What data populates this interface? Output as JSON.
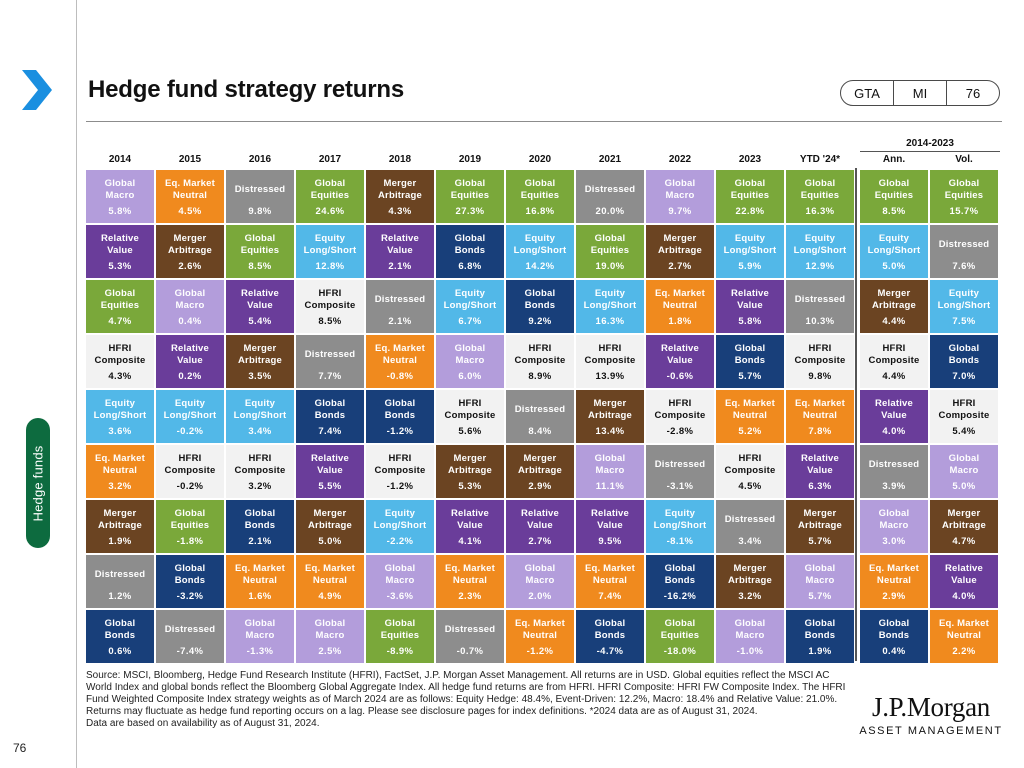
{
  "page": {
    "title": "Hedge fund strategy returns",
    "side_label": "Hedge funds",
    "page_number": "76",
    "badge": [
      "GTA",
      "MI",
      "76"
    ],
    "footnote": "Source: MSCI, Bloomberg, Hedge Fund Research Institute (HFRI), FactSet, J.P. Morgan Asset Management. All returns are in USD. Global equities reflect the MSCI AC World Index and global bonds reflect the Bloomberg Global Aggregate Index. All hedge fund returns are from HFRI. HFRI Composite: HFRI FW Composite Index. The HFRI Fund Weighted Composite Index strategy weights as of March 2024 are as follows: Equity Hedge: 48.4%, Event-Driven: 12.2%, Macro: 18.4% and Relative Value: 21.0%. Returns may fluctuate as hedge fund reporting occurs on a lag. Please see disclosure pages for index definitions. *2024 data are as of August 31, 2024.\nData are based on availability as of August 31, 2024.",
    "logo_main": "J.P.Morgan",
    "logo_sub": "ASSET MANAGEMENT"
  },
  "chart_data": {
    "type": "table",
    "range_label": "2014-2023",
    "columns": [
      "2014",
      "2015",
      "2016",
      "2017",
      "2018",
      "2019",
      "2020",
      "2021",
      "2022",
      "2023",
      "YTD '24*",
      "Ann.",
      "Vol."
    ],
    "colors": {
      "Global Macro": "#b39ddb",
      "Eq. Market Neutral": "#f08a1e",
      "Distressed": "#8d8d8d",
      "Global Equities": "#7aa83a",
      "Merger Arbitrage": "#6b4422",
      "Relative Value": "#6a3d9a",
      "Global Bonds": "#183f7a",
      "Equity Long/Short": "#52b8e8",
      "HFRI Composite": "#f2f2f2"
    },
    "text_colors": {
      "Global Macro": "#ffffff",
      "Eq. Market Neutral": "#ffffff",
      "Distressed": "#ffffff",
      "Global Equities": "#ffffff",
      "Merger Arbitrage": "#ffffff",
      "Relative Value": "#ffffff",
      "Global Bonds": "#ffffff",
      "Equity Long/Short": "#ffffff",
      "HFRI Composite": "#111111"
    },
    "display_names": {
      "Global Macro": "Global\nMacro",
      "Eq. Market Neutral": "Eq. Market\nNeutral",
      "Distressed": "Distressed",
      "Global Equities": "Global\nEquities",
      "Merger Arbitrage": "Merger\nArbitrage",
      "Relative Value": "Relative\nValue",
      "Global Bonds": "Global\nBonds",
      "Equity Long/Short": "Equity\nLong/Short",
      "HFRI Composite": "HFRI\nComposite"
    },
    "cells": [
      [
        [
          "Global Macro",
          "5.8%"
        ],
        [
          "Relative Value",
          "5.3%"
        ],
        [
          "Global Equities",
          "4.7%"
        ],
        [
          "HFRI Composite",
          "4.3%"
        ],
        [
          "Equity Long/Short",
          "3.6%"
        ],
        [
          "Eq. Market Neutral",
          "3.2%"
        ],
        [
          "Merger Arbitrage",
          "1.9%"
        ],
        [
          "Distressed",
          "1.2%"
        ],
        [
          "Global Bonds",
          "0.6%"
        ]
      ],
      [
        [
          "Eq. Market Neutral",
          "4.5%"
        ],
        [
          "Merger Arbitrage",
          "2.6%"
        ],
        [
          "Global Macro",
          "0.4%"
        ],
        [
          "Relative Value",
          "0.2%"
        ],
        [
          "Equity Long/Short",
          "-0.2%"
        ],
        [
          "HFRI Composite",
          "-0.2%"
        ],
        [
          "Global Equities",
          "-1.8%"
        ],
        [
          "Global Bonds",
          "-3.2%"
        ],
        [
          "Distressed",
          "-7.4%"
        ]
      ],
      [
        [
          "Distressed",
          "9.8%"
        ],
        [
          "Global Equities",
          "8.5%"
        ],
        [
          "Relative Value",
          "5.4%"
        ],
        [
          "Merger Arbitrage",
          "3.5%"
        ],
        [
          "Equity Long/Short",
          "3.4%"
        ],
        [
          "HFRI Composite",
          "3.2%"
        ],
        [
          "Global Bonds",
          "2.1%"
        ],
        [
          "Eq. Market Neutral",
          "1.6%"
        ],
        [
          "Global Macro",
          "-1.3%"
        ]
      ],
      [
        [
          "Global Equities",
          "24.6%"
        ],
        [
          "Equity Long/Short",
          "12.8%"
        ],
        [
          "HFRI Composite",
          "8.5%"
        ],
        [
          "Distressed",
          "7.7%"
        ],
        [
          "Global Bonds",
          "7.4%"
        ],
        [
          "Relative Value",
          "5.5%"
        ],
        [
          "Merger Arbitrage",
          "5.0%"
        ],
        [
          "Eq. Market Neutral",
          "4.9%"
        ],
        [
          "Global Macro",
          "2.5%"
        ]
      ],
      [
        [
          "Merger Arbitrage",
          "4.3%"
        ],
        [
          "Relative Value",
          "2.1%"
        ],
        [
          "Distressed",
          "2.1%"
        ],
        [
          "Eq. Market Neutral",
          "-0.8%"
        ],
        [
          "Global Bonds",
          "-1.2%"
        ],
        [
          "HFRI Composite",
          "-1.2%"
        ],
        [
          "Equity Long/Short",
          "-2.2%"
        ],
        [
          "Global Macro",
          "-3.6%"
        ],
        [
          "Global Equities",
          "-8.9%"
        ]
      ],
      [
        [
          "Global Equities",
          "27.3%"
        ],
        [
          "Global Bonds",
          "6.8%"
        ],
        [
          "Equity Long/Short",
          "6.7%"
        ],
        [
          "Global Macro",
          "6.0%"
        ],
        [
          "HFRI Composite",
          "5.6%"
        ],
        [
          "Merger Arbitrage",
          "5.3%"
        ],
        [
          "Relative Value",
          "4.1%"
        ],
        [
          "Eq. Market Neutral",
          "2.3%"
        ],
        [
          "Distressed",
          "-0.7%"
        ]
      ],
      [
        [
          "Global Equities",
          "16.8%"
        ],
        [
          "Equity Long/Short",
          "14.2%"
        ],
        [
          "Global Bonds",
          "9.2%"
        ],
        [
          "HFRI Composite",
          "8.9%"
        ],
        [
          "Distressed",
          "8.4%"
        ],
        [
          "Merger Arbitrage",
          "2.9%"
        ],
        [
          "Relative Value",
          "2.7%"
        ],
        [
          "Global Macro",
          "2.0%"
        ],
        [
          "Eq. Market Neutral",
          "-1.2%"
        ]
      ],
      [
        [
          "Distressed",
          "20.0%"
        ],
        [
          "Global Equities",
          "19.0%"
        ],
        [
          "Equity Long/Short",
          "16.3%"
        ],
        [
          "HFRI Composite",
          "13.9%"
        ],
        [
          "Merger Arbitrage",
          "13.4%"
        ],
        [
          "Global Macro",
          "11.1%"
        ],
        [
          "Relative Value",
          "9.5%"
        ],
        [
          "Eq. Market Neutral",
          "7.4%"
        ],
        [
          "Global Bonds",
          "-4.7%"
        ]
      ],
      [
        [
          "Global Macro",
          "9.7%"
        ],
        [
          "Merger Arbitrage",
          "2.7%"
        ],
        [
          "Eq. Market Neutral",
          "1.8%"
        ],
        [
          "Relative Value",
          "-0.6%"
        ],
        [
          "HFRI Composite",
          "-2.8%"
        ],
        [
          "Distressed",
          "-3.1%"
        ],
        [
          "Equity Long/Short",
          "-8.1%"
        ],
        [
          "Global Bonds",
          "-16.2%"
        ],
        [
          "Global Equities",
          "-18.0%"
        ]
      ],
      [
        [
          "Global Equities",
          "22.8%"
        ],
        [
          "Equity Long/Short",
          "5.9%"
        ],
        [
          "Relative Value",
          "5.8%"
        ],
        [
          "Global Bonds",
          "5.7%"
        ],
        [
          "Eq. Market Neutral",
          "5.2%"
        ],
        [
          "HFRI Composite",
          "4.5%"
        ],
        [
          "Distressed",
          "3.4%"
        ],
        [
          "Merger Arbitrage",
          "3.2%"
        ],
        [
          "Global Macro",
          "-1.0%"
        ]
      ],
      [
        [
          "Global Equities",
          "16.3%"
        ],
        [
          "Equity Long/Short",
          "12.9%"
        ],
        [
          "Distressed",
          "10.3%"
        ],
        [
          "HFRI Composite",
          "9.8%"
        ],
        [
          "Eq. Market Neutral",
          "7.8%"
        ],
        [
          "Relative Value",
          "6.3%"
        ],
        [
          "Merger Arbitrage",
          "5.7%"
        ],
        [
          "Global Macro",
          "5.7%"
        ],
        [
          "Global Bonds",
          "1.9%"
        ]
      ],
      [
        [
          "Global Equities",
          "8.5%"
        ],
        [
          "Equity Long/Short",
          "5.0%"
        ],
        [
          "Merger Arbitrage",
          "4.4%"
        ],
        [
          "HFRI Composite",
          "4.4%"
        ],
        [
          "Relative Value",
          "4.0%"
        ],
        [
          "Distressed",
          "3.9%"
        ],
        [
          "Global Macro",
          "3.0%"
        ],
        [
          "Eq. Market Neutral",
          "2.9%"
        ],
        [
          "Global Bonds",
          "0.4%"
        ]
      ],
      [
        [
          "Global Equities",
          "15.7%"
        ],
        [
          "Distressed",
          "7.6%"
        ],
        [
          "Equity Long/Short",
          "7.5%"
        ],
        [
          "Global Bonds",
          "7.0%"
        ],
        [
          "HFRI Composite",
          "5.4%"
        ],
        [
          "Global Macro",
          "5.0%"
        ],
        [
          "Merger Arbitrage",
          "4.7%"
        ],
        [
          "Relative Value",
          "4.0%"
        ],
        [
          "Eq. Market Neutral",
          "2.2%"
        ]
      ]
    ]
  }
}
